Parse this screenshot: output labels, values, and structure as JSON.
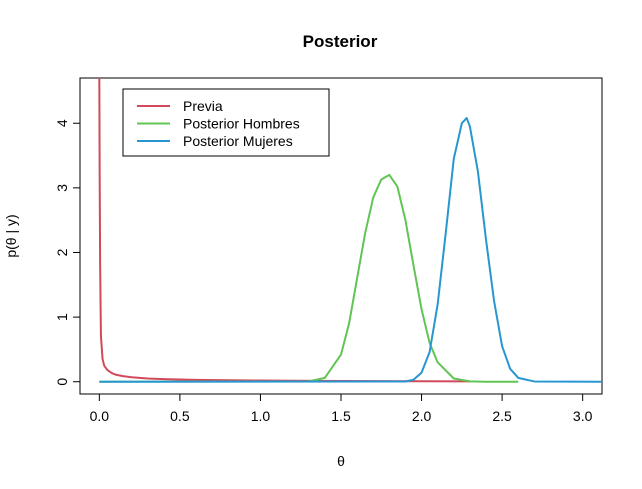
{
  "chart_data": {
    "type": "line",
    "title": "Posterior",
    "xlabel": "θ",
    "ylabel": "p(θ | y)",
    "xlim": [
      -0.12,
      3.12
    ],
    "ylim": [
      -0.19,
      4.7
    ],
    "x_ticks": [
      0.0,
      0.5,
      1.0,
      1.5,
      2.0,
      2.5,
      3.0
    ],
    "x_tick_labels": [
      "0.0",
      "0.5",
      "1.0",
      "1.5",
      "2.0",
      "2.5",
      "3.0"
    ],
    "y_ticks": [
      0,
      1,
      2,
      3,
      4
    ],
    "y_tick_labels": [
      "0",
      "1",
      "2",
      "3",
      "4"
    ],
    "legend_position": "top-left",
    "grid": false,
    "series": [
      {
        "name": "Previa",
        "color": "#D1495B",
        "x": [
          0.0,
          0.002,
          0.005,
          0.01,
          0.02,
          0.03,
          0.05,
          0.08,
          0.1,
          0.15,
          0.2,
          0.3,
          0.4,
          0.6,
          0.8,
          1.0,
          1.2,
          1.5,
          2.0,
          2.3
        ],
        "y": [
          4.7,
          3.2,
          1.8,
          0.7,
          0.35,
          0.25,
          0.18,
          0.13,
          0.11,
          0.085,
          0.07,
          0.05,
          0.04,
          0.028,
          0.022,
          0.018,
          0.015,
          0.011,
          0.008,
          0.006
        ]
      },
      {
        "name": "Posterior Hombres",
        "color": "#61C454",
        "x": [
          0.0,
          1.3,
          1.4,
          1.5,
          1.55,
          1.6,
          1.65,
          1.7,
          1.75,
          1.8,
          1.85,
          1.9,
          1.95,
          2.0,
          2.05,
          2.1,
          2.2,
          2.3,
          2.4,
          2.6
        ],
        "y": [
          0.0,
          0.005,
          0.06,
          0.42,
          0.9,
          1.6,
          2.3,
          2.85,
          3.13,
          3.2,
          3.02,
          2.5,
          1.8,
          1.12,
          0.6,
          0.3,
          0.05,
          0.005,
          0.0,
          0.0
        ]
      },
      {
        "name": "Posterior Mujeres",
        "color": "#2897D1",
        "x": [
          0.0,
          1.9,
          1.95,
          2.0,
          2.05,
          2.1,
          2.15,
          2.2,
          2.25,
          2.28,
          2.3,
          2.35,
          2.4,
          2.45,
          2.5,
          2.55,
          2.6,
          2.7,
          3.12
        ],
        "y": [
          0.0,
          0.003,
          0.03,
          0.14,
          0.46,
          1.2,
          2.3,
          3.45,
          4.0,
          4.08,
          3.95,
          3.25,
          2.2,
          1.25,
          0.55,
          0.2,
          0.06,
          0.004,
          0.0
        ]
      }
    ]
  }
}
